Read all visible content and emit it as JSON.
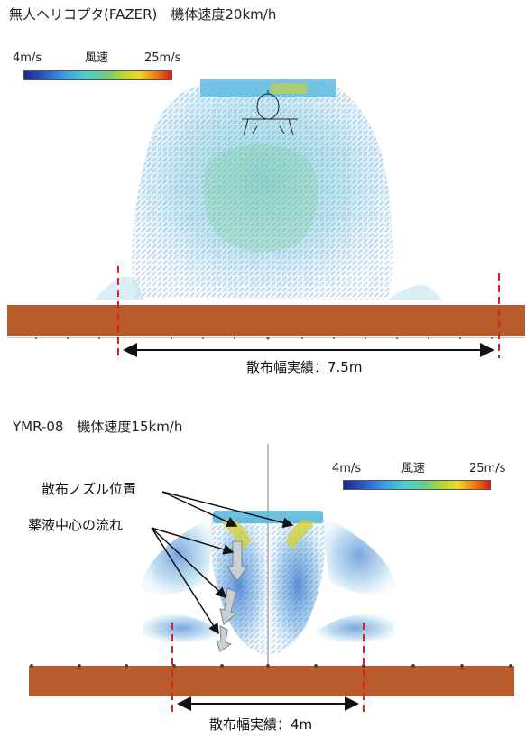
{
  "panel1": {
    "title": "無人ヘリコプタ(FAZER)　機体速度20km/h",
    "colorbar": {
      "min_label": "4m/s",
      "mid_label": "風速",
      "max_label": "25m/s"
    },
    "width_label": "散布幅実績：7.5m"
  },
  "panel2": {
    "title": "YMR-08　機体速度15km/h",
    "colorbar": {
      "min_label": "4m/s",
      "mid_label": "風速",
      "max_label": "25m/s"
    },
    "annotation_nozzle": "散布ノズル位置",
    "annotation_flow": "薬液中心の流れ",
    "width_label": "散布幅実績：4m"
  },
  "colors": {
    "ground": "#b85a2a",
    "dashed_marker": "#e02020",
    "flow_light": "#a8dce8",
    "flow_blue": "#3a7ad0",
    "flow_green": "#8ad070",
    "arrow_fill": "#c8d0d4"
  }
}
